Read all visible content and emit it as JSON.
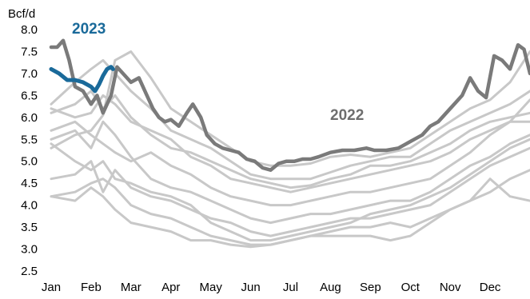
{
  "chart_data": {
    "type": "line",
    "title": "",
    "ylabel": "Bcf/d",
    "xlabel": "",
    "ylim": [
      2.5,
      8.0
    ],
    "xlim": [
      0,
      12
    ],
    "y_ticks": [
      "8.0",
      "7.5",
      "7.0",
      "6.5",
      "6.0",
      "5.5",
      "5.0",
      "4.5",
      "4.0",
      "3.5",
      "3.0",
      "2.5"
    ],
    "x_ticks": [
      "Jan",
      "Feb",
      "Mar",
      "Apr",
      "May",
      "Jun",
      "Jul",
      "Aug",
      "Sep",
      "Oct",
      "Nov",
      "Dec"
    ],
    "grid": false,
    "legend": "none",
    "colors": {
      "highlight_2022": "#7a7a7a",
      "highlight_2023": "#1a6a9a",
      "other_years": "#c8c8c8"
    },
    "annotations": [
      {
        "text": "2023",
        "color": "#1a6a9a"
      },
      {
        "text": "2022",
        "color": "#6e6e6e"
      }
    ],
    "series": [
      {
        "name": "2022",
        "x": [
          0,
          0.15,
          0.3,
          0.45,
          0.6,
          0.8,
          1.0,
          1.15,
          1.3,
          1.5,
          1.65,
          1.8,
          2.0,
          2.2,
          2.4,
          2.55,
          2.7,
          2.85,
          3.0,
          3.2,
          3.4,
          3.55,
          3.75,
          3.9,
          4.1,
          4.3,
          4.5,
          4.7,
          4.9,
          5.1,
          5.3,
          5.5,
          5.7,
          5.9,
          6.1,
          6.3,
          6.5,
          6.7,
          7.0,
          7.3,
          7.6,
          7.9,
          8.1,
          8.4,
          8.7,
          8.9,
          9.1,
          9.3,
          9.5,
          9.7,
          9.9,
          10.1,
          10.3,
          10.5,
          10.7,
          10.9,
          11.1,
          11.3,
          11.5,
          11.7,
          11.85,
          12.0
        ],
        "values": [
          7.6,
          7.6,
          7.75,
          7.3,
          6.7,
          6.6,
          6.3,
          6.5,
          6.1,
          6.5,
          7.15,
          7.0,
          6.8,
          6.9,
          6.5,
          6.2,
          6.0,
          5.9,
          5.95,
          5.8,
          6.1,
          6.3,
          6.0,
          5.6,
          5.4,
          5.3,
          5.25,
          5.2,
          5.05,
          5.0,
          4.85,
          4.8,
          4.95,
          5.0,
          5.0,
          5.05,
          5.05,
          5.1,
          5.2,
          5.25,
          5.25,
          5.3,
          5.25,
          5.25,
          5.3,
          5.4,
          5.5,
          5.6,
          5.8,
          5.9,
          6.1,
          6.3,
          6.5,
          6.9,
          6.6,
          6.45,
          7.4,
          7.3,
          7.1,
          7.65,
          7.55,
          7.0
        ]
      },
      {
        "name": "2023",
        "x": [
          0,
          0.2,
          0.4,
          0.6,
          0.8,
          1.0,
          1.1,
          1.2,
          1.3,
          1.4,
          1.5,
          1.55
        ],
        "values": [
          7.1,
          7.0,
          6.85,
          6.85,
          6.8,
          6.7,
          6.6,
          6.75,
          6.95,
          7.1,
          7.15,
          7.1
        ]
      },
      {
        "name": "",
        "x": [
          0,
          0.6,
          1.0,
          1.3,
          1.6,
          2.0,
          2.5,
          3.0,
          3.5,
          4.0,
          4.5,
          5.0,
          5.5,
          6.0,
          6.5,
          7.0,
          7.5,
          8.0,
          8.5,
          9.0,
          9.5,
          10.0,
          10.5,
          11.0,
          11.5,
          12.0
        ],
        "values": [
          5.3,
          5.6,
          5.7,
          6.05,
          7.3,
          7.5,
          6.9,
          6.2,
          5.9,
          5.6,
          5.3,
          5.0,
          4.9,
          4.9,
          4.95,
          5.1,
          5.15,
          5.1,
          5.2,
          5.3,
          5.6,
          5.9,
          6.2,
          6.4,
          6.8,
          7.5
        ]
      },
      {
        "name": "",
        "x": [
          0,
          0.6,
          1.0,
          1.3,
          1.6,
          2.0,
          2.5,
          3.0,
          3.5,
          4.0,
          4.5,
          5.0,
          5.5,
          6.0,
          6.5,
          7.0,
          7.5,
          8.0,
          8.5,
          9.0,
          9.5,
          10.0,
          10.5,
          11.0,
          11.5,
          12.0
        ],
        "values": [
          6.3,
          6.8,
          7.1,
          7.3,
          7.0,
          6.6,
          6.2,
          5.7,
          5.5,
          5.3,
          5.0,
          4.7,
          4.6,
          4.6,
          4.6,
          4.75,
          4.9,
          5.0,
          5.1,
          5.1,
          5.4,
          5.7,
          5.9,
          6.1,
          6.3,
          6.6
        ]
      },
      {
        "name": "",
        "x": [
          0,
          0.6,
          1.0,
          1.3,
          1.6,
          2.0,
          2.5,
          3.0,
          3.5,
          4.0,
          4.5,
          5.0,
          5.5,
          6.0,
          6.5,
          7.0,
          7.5,
          8.0,
          8.5,
          9.0,
          9.5,
          10.0,
          10.5,
          11.0,
          11.5,
          12.0
        ],
        "values": [
          6.1,
          6.3,
          6.6,
          6.2,
          6.5,
          6.0,
          5.6,
          5.3,
          5.2,
          5.0,
          4.8,
          4.6,
          4.5,
          4.4,
          4.45,
          4.6,
          4.7,
          4.9,
          4.9,
          5.0,
          5.2,
          5.4,
          5.7,
          5.9,
          6.0,
          6.1
        ]
      },
      {
        "name": "",
        "x": [
          0,
          0.6,
          1.0,
          1.3,
          1.6,
          2.0,
          2.5,
          3.0,
          3.5,
          4.0,
          4.5,
          5.0,
          5.5,
          6.0,
          6.5,
          7.0,
          7.5,
          8.0,
          8.5,
          9.0,
          9.5,
          10.0,
          10.5,
          11.0,
          11.5,
          12.0
        ],
        "values": [
          6.2,
          6.0,
          6.1,
          6.5,
          6.3,
          5.9,
          5.7,
          5.5,
          5.1,
          4.9,
          4.6,
          4.5,
          4.4,
          4.3,
          4.4,
          4.5,
          4.6,
          4.7,
          4.8,
          4.9,
          5.0,
          5.2,
          5.5,
          5.7,
          5.9,
          6.4
        ]
      },
      {
        "name": "",
        "x": [
          0,
          0.6,
          1.0,
          1.3,
          1.6,
          2.0,
          2.5,
          3.0,
          3.5,
          4.0,
          4.5,
          5.0,
          5.5,
          6.0,
          6.5,
          7.0,
          7.5,
          8.0,
          8.5,
          9.0,
          9.5,
          10.0,
          10.5,
          11.0,
          11.5,
          12.0
        ],
        "values": [
          5.7,
          5.9,
          5.6,
          5.4,
          5.2,
          5.0,
          5.2,
          4.9,
          4.7,
          4.4,
          4.2,
          4.1,
          4.0,
          4.0,
          4.1,
          4.2,
          4.3,
          4.3,
          4.4,
          4.5,
          4.6,
          4.9,
          5.2,
          5.6,
          5.9,
          5.9
        ]
      },
      {
        "name": "",
        "x": [
          0,
          0.6,
          1.0,
          1.3,
          1.6,
          2.0,
          2.5,
          3.0,
          3.5,
          4.0,
          4.5,
          5.0,
          5.5,
          6.0,
          6.5,
          7.0,
          7.5,
          8.0,
          8.5,
          9.0,
          9.5,
          10.0,
          10.5,
          11.0,
          11.5,
          12.0
        ],
        "values": [
          5.5,
          5.7,
          5.3,
          5.9,
          5.6,
          5.1,
          4.6,
          4.4,
          4.3,
          4.1,
          3.9,
          3.7,
          3.6,
          3.7,
          3.8,
          3.8,
          3.9,
          4.0,
          4.1,
          4.1,
          4.3,
          4.6,
          4.9,
          5.1,
          5.4,
          5.6
        ]
      },
      {
        "name": "",
        "x": [
          0,
          0.6,
          1.0,
          1.3,
          1.6,
          2.0,
          2.5,
          3.0,
          3.5,
          4.0,
          4.5,
          5.0,
          5.5,
          6.0,
          6.5,
          7.0,
          7.5,
          8.0,
          8.5,
          9.0,
          9.5,
          10.0,
          10.5,
          11.0,
          11.5,
          12.0
        ],
        "values": [
          4.6,
          4.7,
          5.0,
          4.3,
          4.8,
          4.4,
          4.2,
          4.1,
          3.9,
          3.7,
          3.6,
          3.4,
          3.3,
          3.4,
          3.5,
          3.6,
          3.7,
          3.7,
          3.8,
          3.9,
          4.0,
          4.3,
          4.6,
          4.9,
          5.1,
          5.3
        ]
      },
      {
        "name": "",
        "x": [
          0,
          0.6,
          1.0,
          1.3,
          1.6,
          2.0,
          2.5,
          3.0,
          3.5,
          4.0,
          4.5,
          5.0,
          5.5,
          6.0,
          6.5,
          7.0,
          7.5,
          8.0,
          8.5,
          9.0,
          9.5,
          10.0,
          10.5,
          11.0,
          11.5,
          12.0
        ],
        "values": [
          4.2,
          4.3,
          4.5,
          4.6,
          4.4,
          4.0,
          3.8,
          3.7,
          3.5,
          3.3,
          3.2,
          3.1,
          3.1,
          3.2,
          3.3,
          3.4,
          3.5,
          3.5,
          3.6,
          3.5,
          3.7,
          3.9,
          4.1,
          4.3,
          4.6,
          4.8
        ]
      },
      {
        "name": "",
        "x": [
          0,
          0.6,
          1.0,
          1.3,
          1.6,
          2.0,
          2.5,
          3.0,
          3.5,
          4.0,
          4.5,
          5.0,
          5.5,
          6.0,
          6.5,
          7.0,
          7.5,
          8.0,
          8.5,
          9.0,
          9.5,
          10.0,
          10.5,
          11.0,
          11.5,
          12.0
        ],
        "values": [
          4.2,
          4.1,
          4.4,
          4.2,
          3.9,
          3.6,
          3.5,
          3.4,
          3.2,
          3.2,
          3.1,
          3.05,
          3.1,
          3.2,
          3.3,
          3.3,
          3.3,
          3.3,
          3.2,
          3.3,
          3.6,
          3.9,
          4.1,
          4.6,
          4.2,
          4.1
        ]
      },
      {
        "name": "",
        "x": [
          0,
          0.6,
          1.0,
          1.3,
          1.6,
          2.0,
          2.5,
          3.0,
          3.5,
          4.0,
          4.5,
          5.0,
          5.5,
          6.0,
          6.5,
          7.0,
          7.5,
          8.0,
          8.5,
          9.0,
          9.5,
          10.0,
          10.5,
          11.0,
          11.5,
          12.0
        ],
        "values": [
          5.4,
          5.0,
          4.8,
          5.0,
          4.6,
          4.5,
          4.3,
          4.2,
          4.0,
          3.6,
          3.4,
          3.2,
          3.2,
          3.3,
          3.4,
          3.5,
          3.6,
          3.8,
          3.9,
          4.0,
          4.2,
          4.4,
          4.7,
          5.0,
          5.3,
          5.5
        ]
      }
    ]
  }
}
